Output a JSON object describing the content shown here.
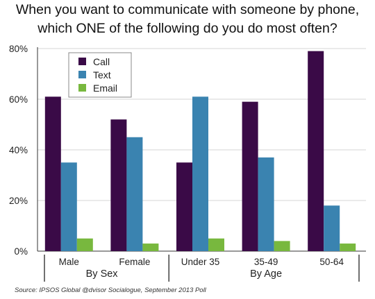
{
  "chart_data": {
    "type": "bar",
    "title": "When you want to communicate with someone by phone,",
    "subtitle": "which ONE of the following do you do most often?",
    "categories": [
      "Male",
      "Female",
      "Under 35",
      "35-49",
      "50-64"
    ],
    "groups": [
      {
        "label": "By Sex",
        "categories": [
          "Male",
          "Female"
        ]
      },
      {
        "label": "By Age",
        "categories": [
          "Under 35",
          "35-49",
          "50-64"
        ]
      }
    ],
    "series": [
      {
        "name": "Call",
        "color": "#3a0a47",
        "values": [
          61,
          52,
          35,
          59,
          79
        ]
      },
      {
        "name": "Text",
        "color": "#3a83b0",
        "values": [
          35,
          45,
          61,
          37,
          18
        ]
      },
      {
        "name": "Email",
        "color": "#78b83e",
        "values": [
          5,
          3,
          5,
          4,
          3
        ]
      }
    ],
    "ylim": [
      0,
      80
    ],
    "yticks": [
      "0%",
      "20%",
      "40%",
      "60%",
      "80%"
    ],
    "grid": true,
    "legend_position": "top-left"
  },
  "source": "Source: IPSOS Global @dvisor Socialogue, September 2013 Poll"
}
